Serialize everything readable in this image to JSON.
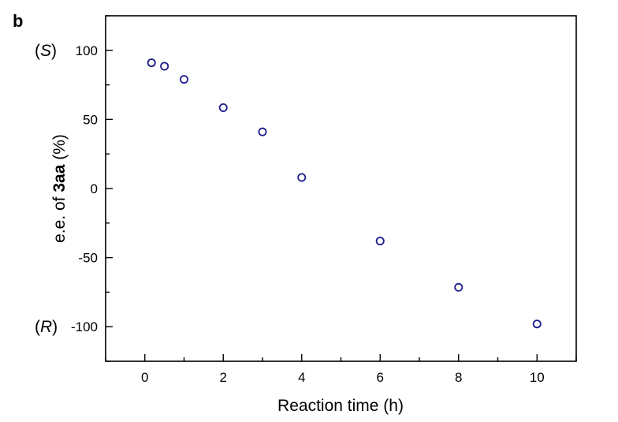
{
  "chart_data": {
    "type": "scatter",
    "panel_label": "b",
    "xlabel": "Reaction time (h)",
    "ylabel": {
      "prefix": "e.e. of ",
      "bold": "3aa",
      "suffix": " (%)"
    },
    "xlim": [
      -1,
      11
    ],
    "ylim": [
      -125,
      125
    ],
    "x_ticks": [
      0,
      2,
      4,
      6,
      8,
      10
    ],
    "x_ticks_minor": [
      -1,
      1,
      3,
      5,
      7,
      9,
      11
    ],
    "y_ticks": [
      -100,
      -50,
      0,
      50,
      100
    ],
    "y_ticks_minor": [
      -125,
      -75,
      -25,
      25,
      75,
      125
    ],
    "y_side_labels": [
      {
        "y": 100,
        "open": "(",
        "italic": "S",
        "close": ")"
      },
      {
        "y": -100,
        "open": "(",
        "italic": "R",
        "close": ")"
      }
    ],
    "series": [
      {
        "marker": "open-circle",
        "color": "#1c1c8c",
        "x": [
          0.17,
          0.5,
          1,
          2,
          3,
          4,
          6,
          8,
          10
        ],
        "y": [
          91,
          88.5,
          79,
          58.5,
          41,
          8,
          -38,
          -71.5,
          -98
        ]
      }
    ],
    "grid": false,
    "legend": "none"
  }
}
